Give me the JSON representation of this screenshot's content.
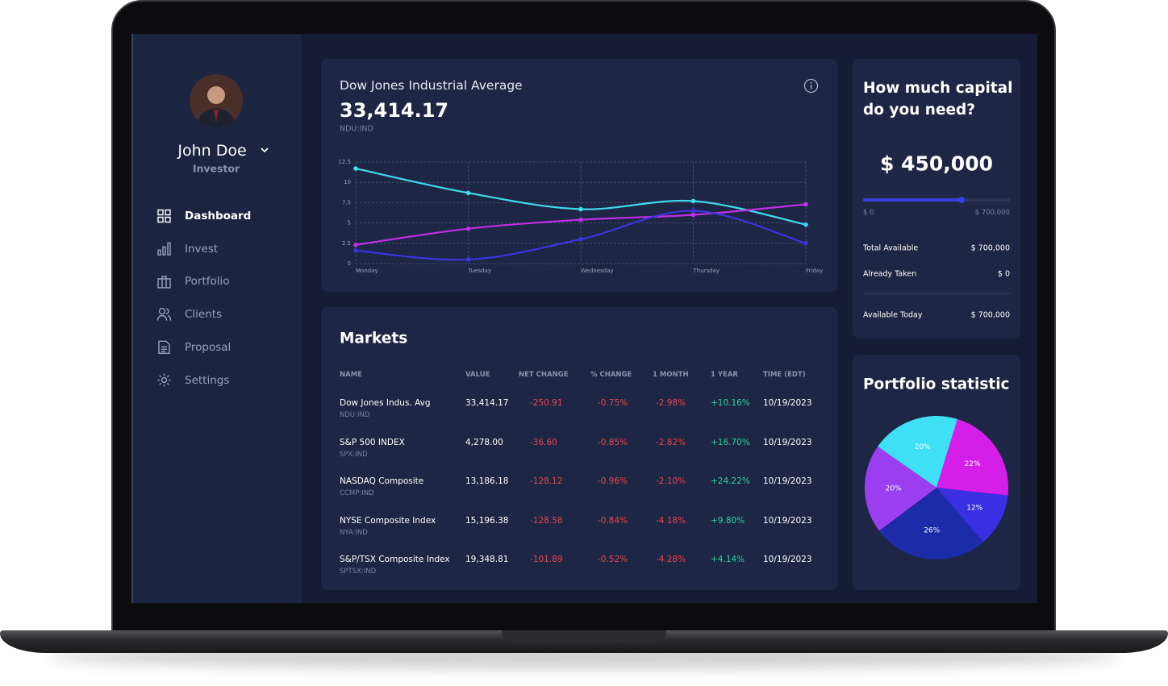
{
  "profile": {
    "name": "John Doe",
    "role": "Investor"
  },
  "nav": [
    "Dashboard",
    "Invest",
    "Portfolio",
    "Clients",
    "Proposal",
    "Settings"
  ],
  "chart_data": [
    {
      "type": "line",
      "title": "Dow Jones Industrial Average",
      "headline": "33,414.17",
      "symbol": "NDU:IND",
      "categories": [
        "Monday",
        "Tuesday",
        "Wednesday",
        "Thursday",
        "Friday"
      ],
      "ylim": [
        0,
        12.5
      ],
      "yticks": [
        0,
        2.5,
        5,
        7.5,
        10,
        12.5
      ],
      "grid": true,
      "series": [
        {
          "color": "#3fd8ee",
          "values": [
            11.7,
            8.7,
            6.7,
            7.7,
            4.8
          ]
        },
        {
          "color": "#c22ee6",
          "values": [
            2.3,
            4.3,
            5.4,
            6.0,
            7.3
          ]
        },
        {
          "color": "#3a35e0",
          "values": [
            1.6,
            0.5,
            3.0,
            6.5,
            2.5
          ]
        }
      ]
    },
    {
      "type": "pie",
      "title": "Portfolio statistic",
      "values": [
        20,
        22,
        12,
        26,
        20
      ],
      "value_labels": [
        "20%",
        "22%",
        "12%",
        "26%",
        "20%"
      ],
      "colors": [
        "#3fe0f5",
        "#d51fe8",
        "#3a2fe2",
        "#1c2ca8",
        "#9a3ef0"
      ]
    }
  ],
  "markets": {
    "title": "Markets",
    "headers": [
      "NAME",
      "VALUE",
      "NET CHANGE",
      "% CHANGE",
      "1 MONTH",
      "1 YEAR",
      "TIME (EDT)"
    ],
    "rows": [
      [
        "Dow Jones Indus. Avg",
        "NDU:IND",
        "33,414.17",
        "-250.91",
        "-0.75%",
        "-2.98%",
        "+10.16%",
        "10/19/2023"
      ],
      [
        "S&P 500 INDEX",
        "SPX:IND",
        "4,278.00",
        "-36.60",
        "-0.85%",
        "-2.82%",
        "+16.70%",
        "10/19/2023"
      ],
      [
        "NASDAQ Composite",
        "CCMP:IND",
        "13,186.18",
        "-128.12",
        "-0.96%",
        "-2.10%",
        "+24.22%",
        "10/19/2023"
      ],
      [
        "NYSE Composite Index",
        "NYA:IND",
        "15,196.38",
        "-128.58",
        "-0.84%",
        "-4.18%",
        "+9.80%",
        "10/19/2023"
      ],
      [
        "S&P/TSX Composite Index",
        "SPTSX:IND",
        "19,348.81",
        "-101.89",
        "-0.52%",
        "-4.28%",
        "+4.14%",
        "10/19/2023"
      ]
    ]
  },
  "capital": {
    "title": "How much capital do you need?",
    "amount": "$ 450,000",
    "min_label": "$ 0",
    "max_label": "$ 700,000",
    "rows": [
      [
        "Total Available",
        "$ 700,000"
      ],
      [
        "Already Taken",
        "$ 0"
      ],
      [
        "Available Today",
        "$ 700,000"
      ]
    ]
  }
}
